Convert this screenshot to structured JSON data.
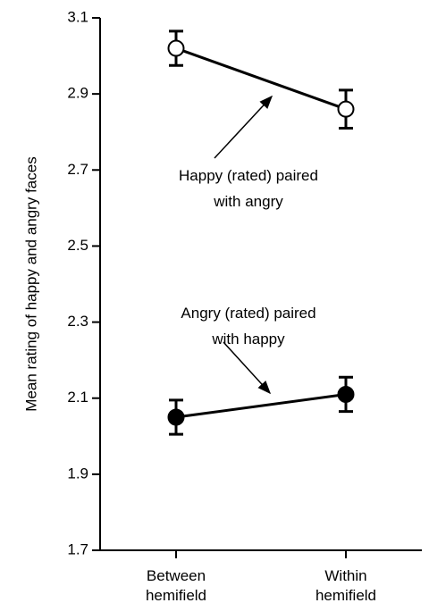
{
  "chart_data": {
    "type": "line",
    "ylabel": "Mean rating of happy and angry faces",
    "categories": [
      "Between\nhemifield",
      "Within\nhemifield"
    ],
    "ylim": [
      1.7,
      3.1
    ],
    "yticks": [
      1.7,
      1.9,
      2.1,
      2.3,
      2.5,
      2.7,
      2.9,
      3.1
    ],
    "series": [
      {
        "name": "Happy (rated) paired\nwith angry",
        "color": "#000000",
        "marker_fill": "#ffffff",
        "values": [
          3.02,
          2.86
        ],
        "errors": [
          0.045,
          0.05
        ]
      },
      {
        "name": "Angry (rated) paired\nwith happy",
        "color": "#000000",
        "marker_fill": "#000000",
        "values": [
          2.05,
          2.11
        ],
        "errors": [
          0.045,
          0.045
        ]
      }
    ]
  }
}
